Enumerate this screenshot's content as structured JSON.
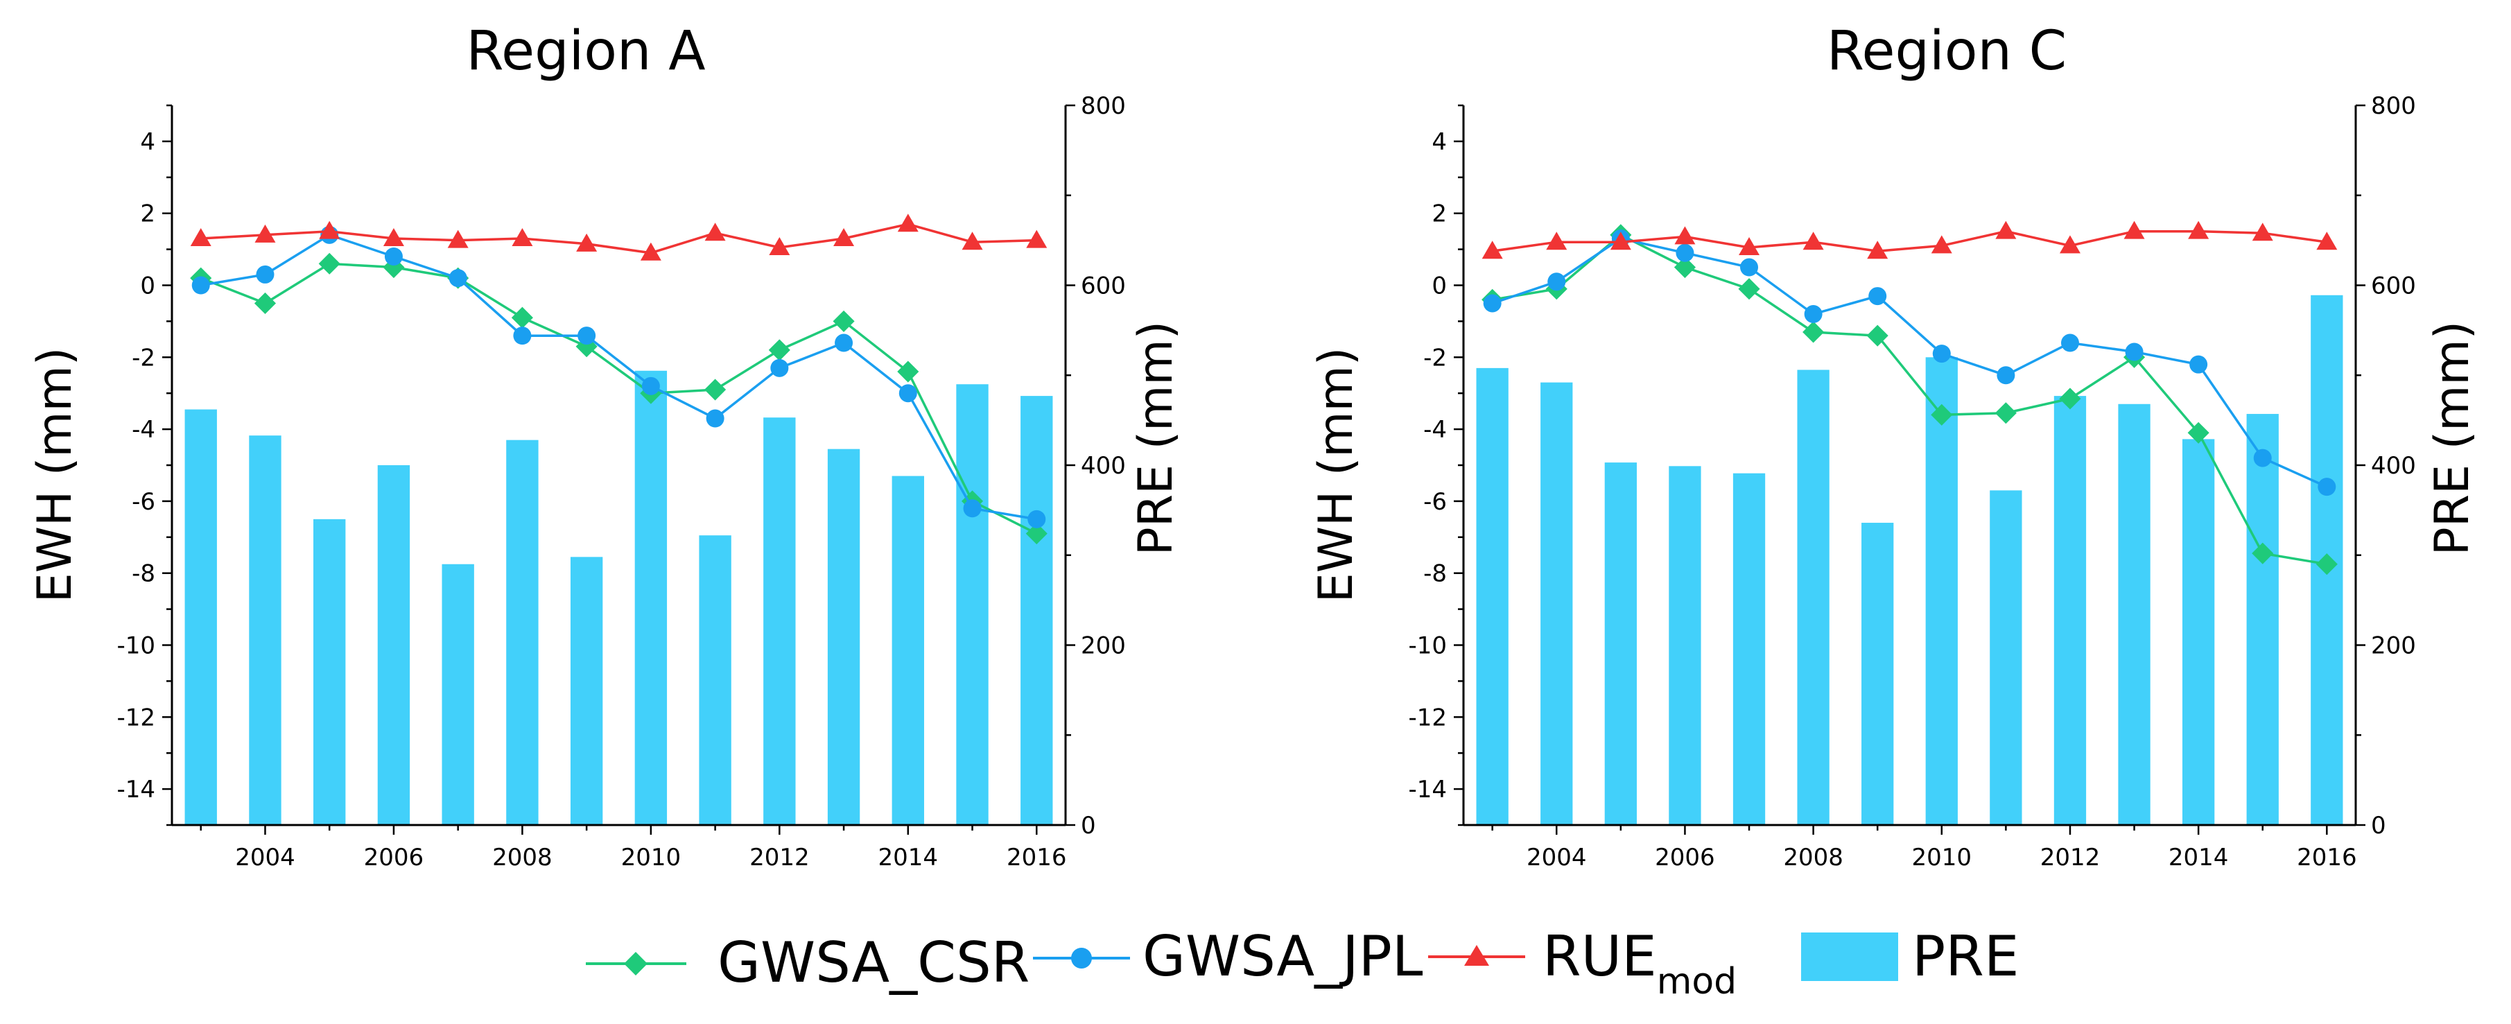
{
  "chart_data": [
    {
      "type": "bar+line",
      "title": "Region A",
      "xlabel": "",
      "ylabel": "EWH (mm)",
      "y2label": "PRE (mm)",
      "ylim": [
        -15,
        5
      ],
      "y2lim": [
        0,
        800
      ],
      "xlim": [
        2002.55,
        2016.45
      ],
      "yticks": [
        "4",
        "2",
        "0",
        "-2",
        "-4",
        "-6",
        "-8",
        "-10",
        "-12",
        "-14"
      ],
      "y2ticks": [
        "800",
        "600",
        "400",
        "200",
        "0"
      ],
      "xticks": [
        "2004",
        "2006",
        "2008",
        "2010",
        "2012",
        "2014",
        "2016"
      ],
      "x": [
        2003,
        2004,
        2005,
        2006,
        2007,
        2008,
        2009,
        2010,
        2011,
        2012,
        2013,
        2014,
        2015,
        2016
      ],
      "bars": {
        "name": "PRE",
        "values": [
          462,
          433,
          340,
          400,
          290,
          428,
          298,
          505,
          322,
          453,
          418,
          388,
          490,
          477
        ]
      },
      "series": [
        {
          "name": "GWSA_CSR",
          "values": [
            0.2,
            -0.5,
            0.6,
            0.5,
            0.2,
            -0.9,
            -1.7,
            -3.0,
            -2.9,
            -1.8,
            -1.0,
            -2.4,
            -6.0,
            -6.9
          ]
        },
        {
          "name": "GWSA_JPL",
          "values": [
            0.0,
            0.3,
            1.4,
            0.8,
            0.2,
            -1.4,
            -1.4,
            -2.8,
            -3.7,
            -2.3,
            -1.6,
            -3.0,
            -6.2,
            -6.5
          ]
        },
        {
          "name": "RUE_mod",
          "values": [
            1.3,
            1.4,
            1.5,
            1.3,
            1.25,
            1.3,
            1.15,
            0.9,
            1.45,
            1.05,
            1.3,
            1.7,
            1.2,
            1.25
          ]
        }
      ]
    },
    {
      "type": "bar+line",
      "title": "Region C",
      "xlabel": "",
      "ylabel": "EWH (mm)",
      "y2label": "PRE (mm)",
      "ylim": [
        -15,
        5
      ],
      "y2lim": [
        0,
        800
      ],
      "xlim": [
        2002.55,
        2016.45
      ],
      "yticks": [
        "4",
        "2",
        "0",
        "-2",
        "-4",
        "-6",
        "-8",
        "-10",
        "-12",
        "-14"
      ],
      "y2ticks": [
        "800",
        "600",
        "400",
        "200",
        "0"
      ],
      "xticks": [
        "2004",
        "2006",
        "2008",
        "2010",
        "2012",
        "2014",
        "2016"
      ],
      "x": [
        2003,
        2004,
        2005,
        2006,
        2007,
        2008,
        2009,
        2010,
        2011,
        2012,
        2013,
        2014,
        2015,
        2016
      ],
      "bars": {
        "name": "PRE",
        "values": [
          508,
          492,
          403,
          399,
          391,
          506,
          336,
          520,
          372,
          477,
          468,
          429,
          457,
          589
        ]
      },
      "series": [
        {
          "name": "GWSA_CSR",
          "values": [
            -0.4,
            -0.1,
            1.4,
            0.5,
            -0.1,
            -1.3,
            -1.4,
            -3.6,
            -3.55,
            -3.15,
            -2.0,
            -4.1,
            -7.45,
            -7.75
          ]
        },
        {
          "name": "GWSA_JPL",
          "values": [
            -0.5,
            0.1,
            1.3,
            0.9,
            0.5,
            -0.8,
            -0.3,
            -1.9,
            -2.5,
            -1.6,
            -1.85,
            -2.2,
            -4.8,
            -5.6
          ]
        },
        {
          "name": "RUE_mod",
          "values": [
            0.95,
            1.2,
            1.2,
            1.35,
            1.05,
            1.2,
            0.95,
            1.1,
            1.5,
            1.1,
            1.5,
            1.5,
            1.45,
            1.2
          ]
        }
      ]
    }
  ],
  "legend": {
    "items": [
      {
        "label": "GWSA_CSR",
        "color": "#1fca7a",
        "marker": "diamond"
      },
      {
        "label": "GWSA_JPL",
        "color": "#1a9ff0",
        "marker": "circle"
      },
      {
        "label": "RUE",
        "sub": "mod",
        "color": "#f03434",
        "marker": "triangle"
      },
      {
        "label": "PRE",
        "color": "#42d0fa",
        "marker": "bar"
      }
    ]
  },
  "colors": {
    "csr": "#1fca7a",
    "jpl": "#1a9ff0",
    "rue": "#f03434",
    "bar": "#42d0fa"
  }
}
